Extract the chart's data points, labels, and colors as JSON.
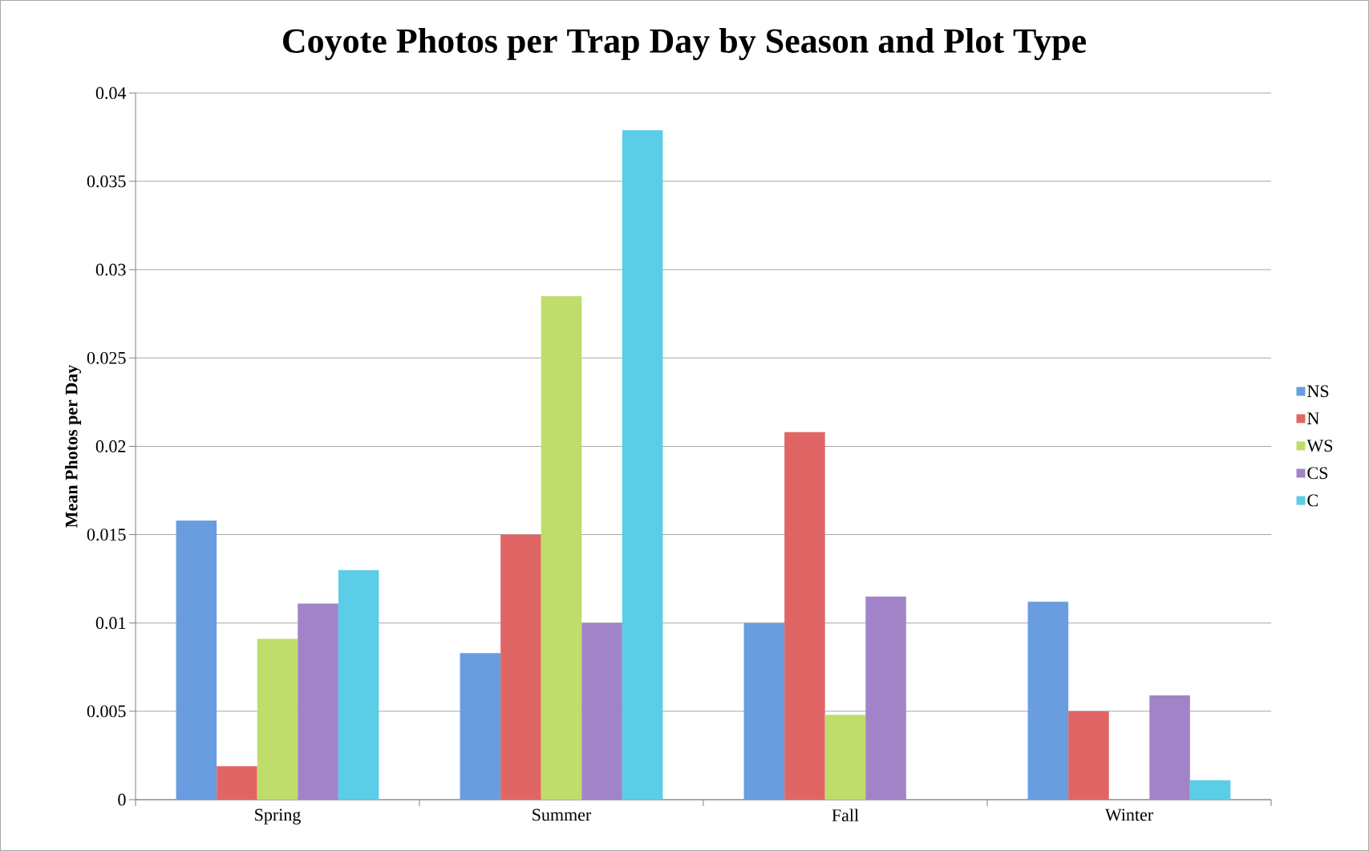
{
  "chart_data": {
    "type": "bar",
    "title": "Coyote Photos per Trap Day by Season and Plot Type",
    "ylabel": "Mean Photos per Day",
    "categories": [
      "Spring",
      "Summer",
      "Fall",
      "Winter"
    ],
    "series": [
      {
        "name": "NS",
        "color": "#6a9de0",
        "values": [
          0.0158,
          0.0083,
          0.01,
          0.0112
        ]
      },
      {
        "name": "N",
        "color": "#e06666",
        "values": [
          0.0019,
          0.015,
          0.0208,
          0.005
        ]
      },
      {
        "name": "WS",
        "color": "#bedd6a",
        "values": [
          0.0091,
          0.0285,
          0.0048,
          0
        ]
      },
      {
        "name": "CS",
        "color": "#a184c8",
        "values": [
          0.0111,
          0.01,
          0.0115,
          0.0059
        ]
      },
      {
        "name": "C",
        "color": "#5ccde6",
        "values": [
          0.013,
          0.0379,
          0,
          0.0011
        ]
      }
    ],
    "ylim": [
      0,
      0.04
    ],
    "yticks": [
      0,
      0.005,
      0.01,
      0.015,
      0.02,
      0.025,
      0.03,
      0.035,
      0.04
    ],
    "grid": "y",
    "legend": "right"
  }
}
